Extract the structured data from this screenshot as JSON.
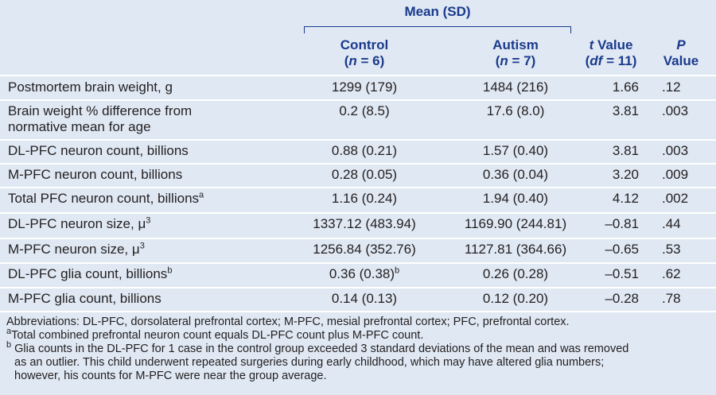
{
  "header": {
    "group": "Mean (SD)",
    "control": {
      "name": "Control",
      "n_open": "(",
      "n": "n",
      "n_rest": " = 6)"
    },
    "autism": {
      "name": "Autism",
      "n_open": "(",
      "n": "n",
      "n_rest": " = 7)"
    },
    "t": {
      "t": "t",
      "rest": " Value",
      "open": "(",
      "df": "df",
      "df_rest": " = 11)"
    },
    "p": {
      "p": "P",
      "rest": "Value"
    }
  },
  "rows": [
    {
      "label": [
        "Postmortem brain weight, g"
      ],
      "control": "1299 (179)",
      "autism": "1484 (216)",
      "t": "1.66",
      "p": ".12"
    },
    {
      "label": [
        "Brain weight % difference from",
        "normative mean for age"
      ],
      "control": "0.2 (8.5)",
      "autism": "17.6 (8.0)",
      "t": "3.81",
      "p": ".003"
    },
    {
      "label": [
        "DL-PFC neuron count, billions"
      ],
      "control": "0.88 (0.21)",
      "autism": "1.57 (0.40)",
      "t": "3.81",
      "p": ".003"
    },
    {
      "label": [
        "M-PFC neuron count, billions"
      ],
      "control": "0.28 (0.05)",
      "autism": "0.36 (0.04)",
      "t": "3.20",
      "p": ".009"
    },
    {
      "label": [
        "Total PFC neuron count, billions"
      ],
      "label_sup": "a",
      "control": "1.16 (0.24)",
      "autism": "1.94 (0.40)",
      "t": "4.12",
      "p": ".002"
    },
    {
      "label": [
        "DL-PFC neuron size, μ"
      ],
      "label_sup": "3",
      "control": "1337.12 (483.94)",
      "autism": "1169.90 (244.81)",
      "t": "–0.81",
      "p": ".44"
    },
    {
      "label": [
        "M-PFC neuron size, μ"
      ],
      "label_sup": "3",
      "control": "1256.84 (352.76)",
      "autism": "1127.81 (364.66)",
      "t": "–0.65",
      "p": ".53"
    },
    {
      "label": [
        "DL-PFC glia count, billions"
      ],
      "label_sup": "b",
      "control": "0.36 (0.38)",
      "control_sup": "b",
      "autism": "0.26 (0.28)",
      "t": "–0.51",
      "p": ".62"
    },
    {
      "label": [
        "M-PFC glia count, billions"
      ],
      "control": "0.14 (0.13)",
      "autism": "0.12 (0.20)",
      "t": "–0.28",
      "p": ".78"
    }
  ],
  "footnotes": {
    "abbreviations": "Abbreviations: DL-PFC, dorsolateral prefrontal cortex; M-PFC, mesial prefrontal cortex; PFC, prefrontal cortex.",
    "a": {
      "mark": "a",
      "text": "Total combined prefrontal neuron count equals DL-PFC count plus M-PFC count."
    },
    "b": {
      "mark": "b",
      "lines": [
        "Glia counts in the DL-PFC for 1 case in the control group exceeded 3 standard deviations of the mean and was removed",
        "as an outlier. This child underwent repeated surgeries during early childhood, which may have altered glia numbers;",
        "however, his counts for M-PFC were near the group average."
      ]
    }
  }
}
